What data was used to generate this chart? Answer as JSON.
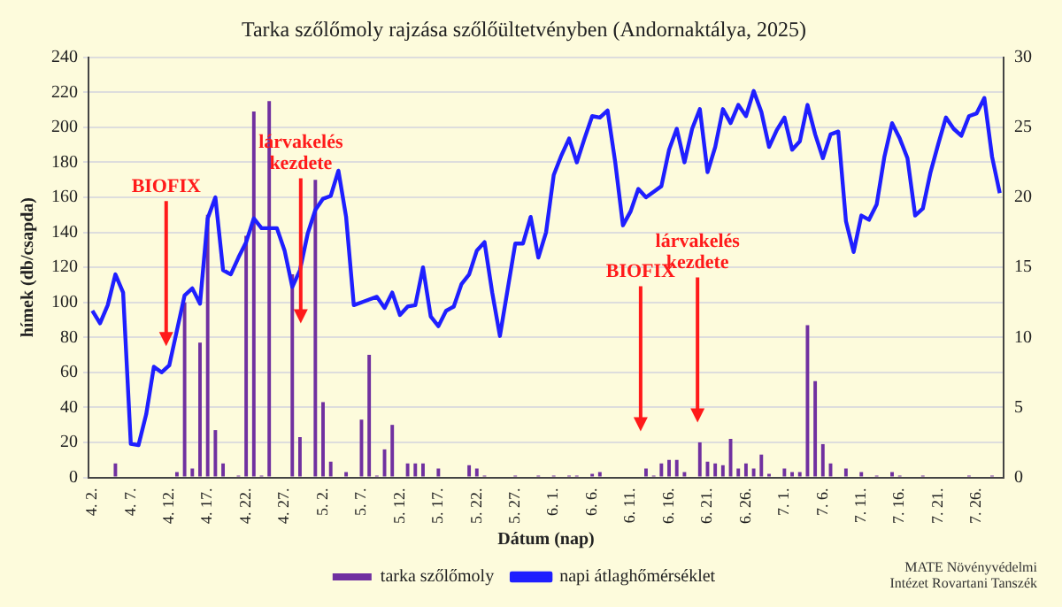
{
  "chart_data": {
    "type": "bar",
    "title": "Tarka szőlőmoly rajzása szőlőültetvényben (Andornaktálya, 2025)",
    "xlabel": "Dátum (nap)",
    "ylabel": "hímek (db/csapda)",
    "categories": [
      "4. 2.",
      null,
      null,
      null,
      null,
      "4. 7.",
      null,
      null,
      null,
      null,
      "4. 12.",
      null,
      null,
      null,
      null,
      "4. 17.",
      null,
      null,
      null,
      null,
      "4. 22.",
      null,
      null,
      null,
      null,
      "4. 27.",
      null,
      null,
      null,
      null,
      "5. 2.",
      null,
      null,
      null,
      null,
      "5. 7.",
      null,
      null,
      null,
      null,
      "5. 12.",
      null,
      null,
      null,
      null,
      "5. 17.",
      null,
      null,
      null,
      null,
      "5. 22.",
      null,
      null,
      null,
      null,
      "5. 27.",
      null,
      null,
      null,
      null,
      "6. 1.",
      null,
      null,
      null,
      null,
      "6. 6.",
      null,
      null,
      null,
      null,
      "6. 11.",
      null,
      null,
      null,
      null,
      "6. 16.",
      null,
      null,
      null,
      null,
      "6. 21.",
      null,
      null,
      null,
      null,
      "6. 26.",
      null,
      null,
      null,
      null,
      "7. 1.",
      null,
      null,
      null,
      null,
      "7. 6.",
      null,
      null,
      null,
      null,
      "7. 11.",
      null,
      null,
      null,
      null,
      "7. 16.",
      null,
      null,
      null,
      null,
      "7. 21.",
      null,
      null,
      null,
      null,
      "7. 26.",
      null,
      null,
      null
    ],
    "series": [
      {
        "name": "tarka szőlőmoly",
        "color": "#7030a0",
        "values": [
          0,
          0,
          0,
          8,
          0,
          0,
          0,
          0,
          0,
          0,
          0,
          3,
          100,
          5,
          77,
          150,
          27,
          8,
          0,
          1,
          138,
          209,
          1,
          215,
          0,
          0,
          116,
          23,
          0,
          170,
          43,
          9,
          0,
          3,
          0,
          33,
          70,
          1,
          16,
          30,
          0,
          8,
          8,
          8,
          0,
          5,
          0,
          0,
          0,
          7,
          5,
          1,
          0,
          0,
          0,
          1,
          0,
          0,
          1,
          0,
          1,
          0,
          1,
          1,
          0,
          2,
          3,
          0,
          0,
          0,
          0,
          0,
          5,
          1,
          8,
          10,
          10,
          3,
          0,
          20,
          9,
          8,
          7,
          22,
          5,
          8,
          5,
          13,
          2,
          0,
          5,
          3,
          3,
          87,
          55,
          19,
          8,
          0,
          5,
          0,
          3,
          0,
          1,
          0,
          3,
          1,
          0,
          0,
          1,
          0,
          0,
          0,
          0,
          0,
          1,
          0,
          0,
          1,
          0
        ]
      },
      {
        "name": "napi átlaghőmérséklet",
        "type": "line",
        "axis": "y2",
        "color": "#1f1fff",
        "values": [
          11.9,
          11.0,
          12.3,
          14.5,
          13.2,
          2.4,
          2.3,
          4.5,
          7.9,
          7.5,
          8.0,
          10.5,
          13,
          13.5,
          12.4,
          18.5,
          20,
          14.8,
          14.5,
          15.7,
          16.8,
          18.5,
          17.8,
          17.8,
          17.8,
          16.2,
          13.6,
          14.8,
          17.4,
          19.1,
          19.9,
          20.1,
          21.9,
          18.6,
          12.3,
          12.5,
          12.7,
          12.9,
          12.1,
          13.2,
          11.6,
          12.2,
          12.3,
          15,
          11.5,
          10.8,
          11.9,
          12.2,
          13.8,
          14.5,
          16.2,
          16.8,
          13.2,
          10.1,
          13.4,
          16.7,
          16.7,
          18.6,
          15.7,
          17.5,
          21.6,
          23,
          24.2,
          22.5,
          24.2,
          25.8,
          25.7,
          26.2,
          22.5,
          18.0,
          19.0,
          20.6,
          20.0,
          20.4,
          20.8,
          23.4,
          24.9,
          22.5,
          24.9,
          26.3,
          21.8,
          23.6,
          26.3,
          25.3,
          26.6,
          25.8,
          27.6,
          26.1,
          23.6,
          24.8,
          25.7,
          23.4,
          24.0,
          26.6,
          24.5,
          22.8,
          24.5,
          24.7,
          18.3,
          16.1,
          18.7,
          18.4,
          19.5,
          22.9,
          25.3,
          24.2,
          22.8,
          18.7,
          19.2,
          21.8,
          23.8,
          25.7,
          24.9,
          24.4,
          25.8,
          26.0,
          27.1,
          22.9,
          20.3
        ]
      }
    ],
    "marker": "none",
    "ylim": [
      0,
      240
    ],
    "yticks": [
      0,
      20,
      40,
      60,
      80,
      100,
      120,
      140,
      160,
      180,
      200,
      220,
      240
    ],
    "y2lim": [
      0,
      30
    ],
    "y2ticks": [
      0,
      5,
      10,
      15,
      20,
      25,
      30
    ],
    "grid": "y",
    "legend": "bottom",
    "annotations": [
      {
        "text": "BIOFIX",
        "y": 75
      },
      {
        "text": "lárvakelés\nkezdete",
        "y": 88
      },
      "BIOFIX",
      "lárvakelés\nkezdete",
      "MATE Növényvédelmi\nIntézet Rovartani Tanszék"
    ]
  }
}
